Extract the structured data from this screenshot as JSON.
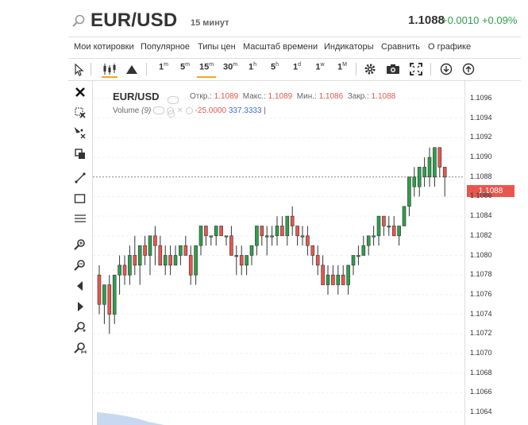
{
  "header": {
    "symbol": "EUR/USD",
    "timeframe": "15 минут",
    "last_price": "1.1088",
    "change": "+0.0010 +0.09%"
  },
  "menu": [
    "Мои котировки",
    "Популярное",
    "Типы цен",
    "Масштаб времени",
    "Индикаторы",
    "Сравнить",
    "О графике"
  ],
  "toolbar": {
    "intervals": [
      {
        "num": "1",
        "unit": "m"
      },
      {
        "num": "5",
        "unit": "m"
      },
      {
        "num": "15",
        "unit": "m"
      },
      {
        "num": "30",
        "unit": "m"
      },
      {
        "num": "1",
        "unit": "h"
      },
      {
        "num": "5",
        "unit": "h"
      },
      {
        "num": "1",
        "unit": "d"
      },
      {
        "num": "1",
        "unit": "w"
      },
      {
        "num": "1",
        "unit": "M"
      }
    ],
    "active_interval": "15m"
  },
  "legend": {
    "symbol": "EUR/USD",
    "open_label": "Откр.:",
    "open": "1.1089",
    "high_label": "Макс.:",
    "high": "1.1089",
    "low_label": "Мин.:",
    "low": "1.1086",
    "close_label": "Закр.:",
    "close": "1.1088",
    "volume_label": "Volume",
    "volume_period": "(9)",
    "volume_value_1": "-25.0000",
    "volume_value_2": "337.3333"
  },
  "price_axis": {
    "ticks": [
      "1.1096",
      "1.1094",
      "1.1092",
      "1.1090",
      "1.1088",
      "1.1086",
      "1.1084",
      "1.1082",
      "1.1080",
      "1.1078",
      "1.1076",
      "1.1074",
      "1.1072",
      "1.1070",
      "1.1068",
      "1.1066",
      "1.1064"
    ],
    "current": "1.1088"
  },
  "colors": {
    "up": "#2e9e4b",
    "down": "#e8574d",
    "accent": "#f5a623"
  },
  "chart_data": {
    "type": "candlestick",
    "ylim": [
      1.1063,
      1.1097
    ],
    "last_price": 1.1088,
    "candles": [
      {
        "o": 1.1078,
        "h": 1.1079,
        "l": 1.1074,
        "c": 1.1075
      },
      {
        "o": 1.1075,
        "h": 1.1077,
        "l": 1.1073,
        "c": 1.1077
      },
      {
        "o": 1.1077,
        "h": 1.1078,
        "l": 1.1072,
        "c": 1.1074
      },
      {
        "o": 1.1074,
        "h": 1.1078,
        "l": 1.1073,
        "c": 1.1078
      },
      {
        "o": 1.1078,
        "h": 1.108,
        "l": 1.1076,
        "c": 1.1079
      },
      {
        "o": 1.1079,
        "h": 1.108,
        "l": 1.1077,
        "c": 1.1078
      },
      {
        "o": 1.1078,
        "h": 1.1081,
        "l": 1.1077,
        "c": 1.108
      },
      {
        "o": 1.108,
        "h": 1.1082,
        "l": 1.1078,
        "c": 1.1079
      },
      {
        "o": 1.1079,
        "h": 1.1081,
        "l": 1.1077,
        "c": 1.1081
      },
      {
        "o": 1.1081,
        "h": 1.1082,
        "l": 1.1079,
        "c": 1.108
      },
      {
        "o": 1.108,
        "h": 1.1082,
        "l": 1.1078,
        "c": 1.1082
      },
      {
        "o": 1.1082,
        "h": 1.1083,
        "l": 1.1079,
        "c": 1.1081
      },
      {
        "o": 1.1081,
        "h": 1.1082,
        "l": 1.1079,
        "c": 1.1079
      },
      {
        "o": 1.1079,
        "h": 1.1081,
        "l": 1.1078,
        "c": 1.108
      },
      {
        "o": 1.108,
        "h": 1.1081,
        "l": 1.1078,
        "c": 1.1079
      },
      {
        "o": 1.1079,
        "h": 1.1081,
        "l": 1.1079,
        "c": 1.108
      },
      {
        "o": 1.108,
        "h": 1.1081,
        "l": 1.1079,
        "c": 1.1081
      },
      {
        "o": 1.1081,
        "h": 1.1082,
        "l": 1.108,
        "c": 1.108
      },
      {
        "o": 1.108,
        "h": 1.1081,
        "l": 1.1077,
        "c": 1.1078
      },
      {
        "o": 1.1078,
        "h": 1.1081,
        "l": 1.1077,
        "c": 1.1081
      },
      {
        "o": 1.1081,
        "h": 1.1083,
        "l": 1.108,
        "c": 1.1083
      },
      {
        "o": 1.1083,
        "h": 1.1083,
        "l": 1.1081,
        "c": 1.1082
      },
      {
        "o": 1.1082,
        "h": 1.1082,
        "l": 1.1081,
        "c": 1.1082
      },
      {
        "o": 1.1082,
        "h": 1.1083,
        "l": 1.1081,
        "c": 1.1083
      },
      {
        "o": 1.1083,
        "h": 1.1083,
        "l": 1.1082,
        "c": 1.1082
      },
      {
        "o": 1.1082,
        "h": 1.1082,
        "l": 1.1081,
        "c": 1.1082
      },
      {
        "o": 1.1082,
        "h": 1.1083,
        "l": 1.108,
        "c": 1.108
      },
      {
        "o": 1.108,
        "h": 1.1081,
        "l": 1.1078,
        "c": 1.108
      },
      {
        "o": 1.108,
        "h": 1.1081,
        "l": 1.1078,
        "c": 1.1079
      },
      {
        "o": 1.1079,
        "h": 1.108,
        "l": 1.1078,
        "c": 1.108
      },
      {
        "o": 1.108,
        "h": 1.1081,
        "l": 1.1079,
        "c": 1.1081
      },
      {
        "o": 1.1081,
        "h": 1.1083,
        "l": 1.108,
        "c": 1.1083
      },
      {
        "o": 1.1083,
        "h": 1.1083,
        "l": 1.1081,
        "c": 1.1082
      },
      {
        "o": 1.1082,
        "h": 1.1083,
        "l": 1.108,
        "c": 1.1082
      },
      {
        "o": 1.1082,
        "h": 1.1083,
        "l": 1.1081,
        "c": 1.1082
      },
      {
        "o": 1.1082,
        "h": 1.1084,
        "l": 1.1081,
        "c": 1.1083
      },
      {
        "o": 1.1083,
        "h": 1.1084,
        "l": 1.1082,
        "c": 1.1082
      },
      {
        "o": 1.1082,
        "h": 1.1084,
        "l": 1.1081,
        "c": 1.1084
      },
      {
        "o": 1.1084,
        "h": 1.1085,
        "l": 1.1082,
        "c": 1.1083
      },
      {
        "o": 1.1083,
        "h": 1.1083,
        "l": 1.1081,
        "c": 1.1082
      },
      {
        "o": 1.1082,
        "h": 1.1083,
        "l": 1.1081,
        "c": 1.1082
      },
      {
        "o": 1.1082,
        "h": 1.1083,
        "l": 1.108,
        "c": 1.1081
      },
      {
        "o": 1.1081,
        "h": 1.1081,
        "l": 1.1079,
        "c": 1.108
      },
      {
        "o": 1.108,
        "h": 1.1081,
        "l": 1.1078,
        "c": 1.1079
      },
      {
        "o": 1.1079,
        "h": 1.108,
        "l": 1.1077,
        "c": 1.1077
      },
      {
        "o": 1.1077,
        "h": 1.1079,
        "l": 1.1076,
        "c": 1.1078
      },
      {
        "o": 1.1078,
        "h": 1.1079,
        "l": 1.1077,
        "c": 1.1077
      },
      {
        "o": 1.1077,
        "h": 1.1079,
        "l": 1.1076,
        "c": 1.1078
      },
      {
        "o": 1.1078,
        "h": 1.1079,
        "l": 1.1077,
        "c": 1.1077
      },
      {
        "o": 1.1077,
        "h": 1.1079,
        "l": 1.1076,
        "c": 1.1079
      },
      {
        "o": 1.1079,
        "h": 1.108,
        "l": 1.1078,
        "c": 1.108
      },
      {
        "o": 1.108,
        "h": 1.1081,
        "l": 1.1079,
        "c": 1.108
      },
      {
        "o": 1.108,
        "h": 1.1082,
        "l": 1.108,
        "c": 1.1081
      },
      {
        "o": 1.1081,
        "h": 1.1082,
        "l": 1.108,
        "c": 1.1082
      },
      {
        "o": 1.1082,
        "h": 1.1083,
        "l": 1.1081,
        "c": 1.1082
      },
      {
        "o": 1.1082,
        "h": 1.1084,
        "l": 1.1081,
        "c": 1.1084
      },
      {
        "o": 1.1084,
        "h": 1.1084,
        "l": 1.1082,
        "c": 1.1083
      },
      {
        "o": 1.1083,
        "h": 1.1084,
        "l": 1.1082,
        "c": 1.1083
      },
      {
        "o": 1.1083,
        "h": 1.1084,
        "l": 1.1082,
        "c": 1.1082
      },
      {
        "o": 1.1082,
        "h": 1.1083,
        "l": 1.1081,
        "c": 1.1083
      },
      {
        "o": 1.1083,
        "h": 1.1085,
        "l": 1.1083,
        "c": 1.1085
      },
      {
        "o": 1.1085,
        "h": 1.1088,
        "l": 1.1084,
        "c": 1.1088
      },
      {
        "o": 1.1087,
        "h": 1.1089,
        "l": 1.1086,
        "c": 1.1088
      },
      {
        "o": 1.1087,
        "h": 1.1089,
        "l": 1.1086,
        "c": 1.1089
      },
      {
        "o": 1.1088,
        "h": 1.109,
        "l": 1.1087,
        "c": 1.1089
      },
      {
        "o": 1.1088,
        "h": 1.1091,
        "l": 1.1087,
        "c": 1.109
      },
      {
        "o": 1.1088,
        "h": 1.1091,
        "l": 1.1087,
        "c": 1.1091
      },
      {
        "o": 1.1091,
        "h": 1.1091,
        "l": 1.1088,
        "c": 1.1089
      },
      {
        "o": 1.1089,
        "h": 1.1089,
        "l": 1.1086,
        "c": 1.1088
      }
    ]
  }
}
